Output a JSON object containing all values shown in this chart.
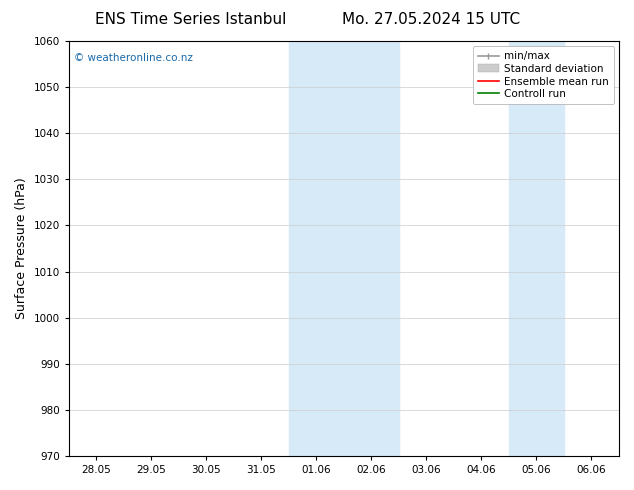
{
  "title_left": "ENS Time Series Istanbul",
  "title_right": "Mo. 27.05.2024 15 UTC",
  "ylabel": "Surface Pressure (hPa)",
  "ylim": [
    970,
    1060
  ],
  "yticks": [
    970,
    980,
    990,
    1000,
    1010,
    1020,
    1030,
    1040,
    1050,
    1060
  ],
  "x_labels": [
    "28.05",
    "29.05",
    "30.05",
    "31.05",
    "01.06",
    "02.06",
    "03.06",
    "04.06",
    "05.06",
    "06.06"
  ],
  "x_positions": [
    0,
    1,
    2,
    3,
    4,
    5,
    6,
    7,
    8,
    9
  ],
  "shade_regions": [
    {
      "xmin": 4.0,
      "xmax": 6.0,
      "color": "#d6eaf8"
    },
    {
      "xmin": 8.0,
      "xmax": 9.0,
      "color": "#d6eaf8"
    }
  ],
  "watermark": "© weatheronline.co.nz",
  "watermark_color": "#1a6aaa",
  "legend_items": [
    {
      "label": "min/max",
      "color": "#999999",
      "linestyle": "-",
      "lw": 1.2
    },
    {
      "label": "Standard deviation",
      "color": "#cccccc",
      "linestyle": "-",
      "lw": 5
    },
    {
      "label": "Ensemble mean run",
      "color": "red",
      "linestyle": "-",
      "lw": 1.2
    },
    {
      "label": "Controll run",
      "color": "green",
      "linestyle": "-",
      "lw": 1.2
    }
  ],
  "bg_color": "#ffffff",
  "plot_bg_color": "#ffffff",
  "grid_color": "#cccccc",
  "tick_fontsize": 7.5,
  "label_fontsize": 9,
  "title_fontsize": 11,
  "legend_fontsize": 7.5
}
